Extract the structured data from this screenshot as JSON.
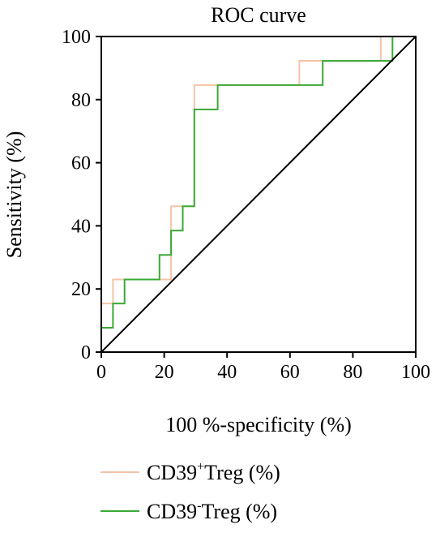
{
  "chart_data": {
    "type": "line",
    "title": "ROC curve",
    "xlabel": "100 %-specificity (%)",
    "ylabel": "Sensitivity (%)",
    "xlim": [
      0,
      100
    ],
    "ylim": [
      0,
      100
    ],
    "xticks": [
      "0",
      "20",
      "40",
      "60",
      "80",
      "100"
    ],
    "yticks": [
      "0",
      "20",
      "40",
      "60",
      "80",
      "100"
    ],
    "grid": false,
    "legend_position": "bottom",
    "series": [
      {
        "name": "CD39+Treg (%)",
        "legend_base": "CD39",
        "legend_sup": "+",
        "legend_rest": "Treg (%)",
        "color": "#f6c3a8",
        "x": [
          0,
          0,
          3.7,
          3.7,
          22.2,
          22.2,
          29.6,
          29.6,
          63,
          63,
          88.9,
          88.9,
          100
        ],
        "y": [
          0,
          15.4,
          15.4,
          23,
          23,
          46.2,
          46.2,
          84.6,
          84.6,
          92.3,
          92.3,
          100,
          100
        ]
      },
      {
        "name": "CD39-Treg (%)",
        "legend_base": "CD39",
        "legend_sup": "-",
        "legend_rest": "Treg (%)",
        "color": "#3aaa35",
        "x": [
          0,
          0,
          3.7,
          3.7,
          7.4,
          7.4,
          18.5,
          18.5,
          22.2,
          22.2,
          25.9,
          25.9,
          29.6,
          29.6,
          37,
          37,
          70.4,
          70.4,
          92.6,
          92.6,
          100
        ],
        "y": [
          0,
          7.7,
          7.7,
          15.4,
          15.4,
          23,
          23,
          30.8,
          30.8,
          38.5,
          38.5,
          46.2,
          46.2,
          76.9,
          76.9,
          84.6,
          84.6,
          92.3,
          92.3,
          100,
          100
        ]
      },
      {
        "name": "",
        "color": "#000000",
        "x": [
          0,
          100
        ],
        "y": [
          0,
          100
        ]
      }
    ]
  }
}
